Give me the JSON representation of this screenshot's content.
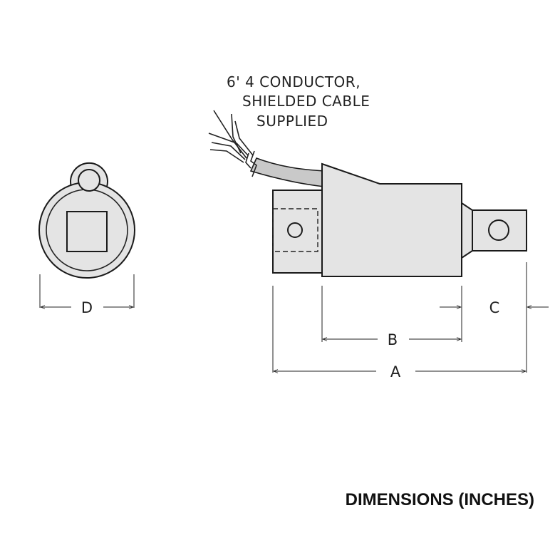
{
  "cable_note": {
    "line1": "6' 4 CONDUCTOR,",
    "line2": "SHIELDED CABLE",
    "line3": "SUPPLIED"
  },
  "dimensions": {
    "a": "A",
    "b": "B",
    "c": "C",
    "d": "D"
  },
  "title": "DIMENSIONS (INCHES)",
  "colors": {
    "body_fill": "#e4e4e4",
    "cable_fill": "#c9c9c9",
    "line": "#1a1a1a"
  }
}
